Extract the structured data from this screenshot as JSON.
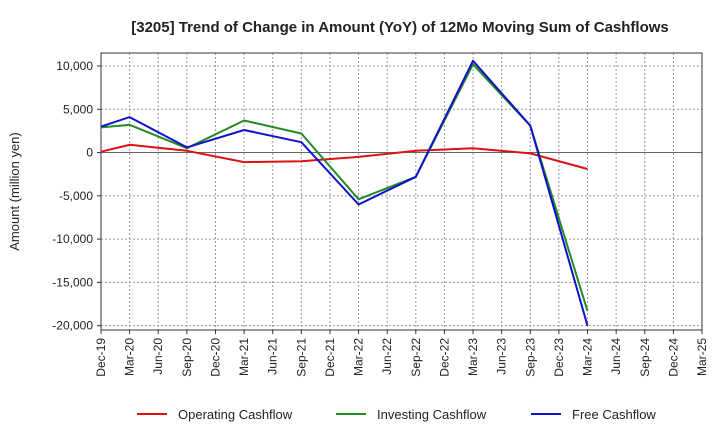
{
  "chart_data": {
    "type": "line",
    "title": "[3205]  Trend of Change in Amount (YoY) of 12Mo Moving Sum of Cashflows",
    "xlabel": "",
    "ylabel": "Amount (million yen)",
    "ylim": [
      -20500,
      11500
    ],
    "yticks": [
      10000,
      5000,
      0,
      -5000,
      -10000,
      -15000,
      -20000
    ],
    "ytick_labels": [
      "10,000",
      "5,000",
      "0",
      "-5,000",
      "-10,000",
      "-15,000",
      "-20,000"
    ],
    "categories": [
      "Dec-19",
      "Mar-20",
      "Jun-20",
      "Sep-20",
      "Dec-20",
      "Mar-21",
      "Jun-21",
      "Sep-21",
      "Dec-21",
      "Mar-22",
      "Jun-22",
      "Sep-22",
      "Dec-22",
      "Mar-23",
      "Jun-23",
      "Sep-23",
      "Dec-23",
      "Mar-24",
      "Jun-24",
      "Sep-24",
      "Dec-24",
      "Mar-25"
    ],
    "grid": true,
    "legend_position": "bottom",
    "series": [
      {
        "name": "Operating Cashflow",
        "color": "#dd1111",
        "values": [
          100,
          900,
          null,
          200,
          null,
          -1100,
          null,
          -1000,
          null,
          -500,
          null,
          200,
          null,
          500,
          null,
          -100,
          null,
          -1900,
          null,
          null,
          null,
          null
        ]
      },
      {
        "name": "Investing Cashflow",
        "color": "#228b22",
        "values": [
          2900,
          3200,
          null,
          500,
          null,
          3700,
          null,
          2200,
          null,
          -5400,
          null,
          -2800,
          null,
          10200,
          null,
          3100,
          null,
          -18300,
          null,
          null,
          null,
          null
        ]
      },
      {
        "name": "Free Cashflow",
        "color": "#1111cc",
        "values": [
          3000,
          4100,
          null,
          600,
          null,
          2600,
          null,
          1200,
          null,
          -6000,
          null,
          -2800,
          null,
          10600,
          null,
          3100,
          null,
          -20000,
          null,
          null,
          null,
          null
        ]
      }
    ]
  }
}
